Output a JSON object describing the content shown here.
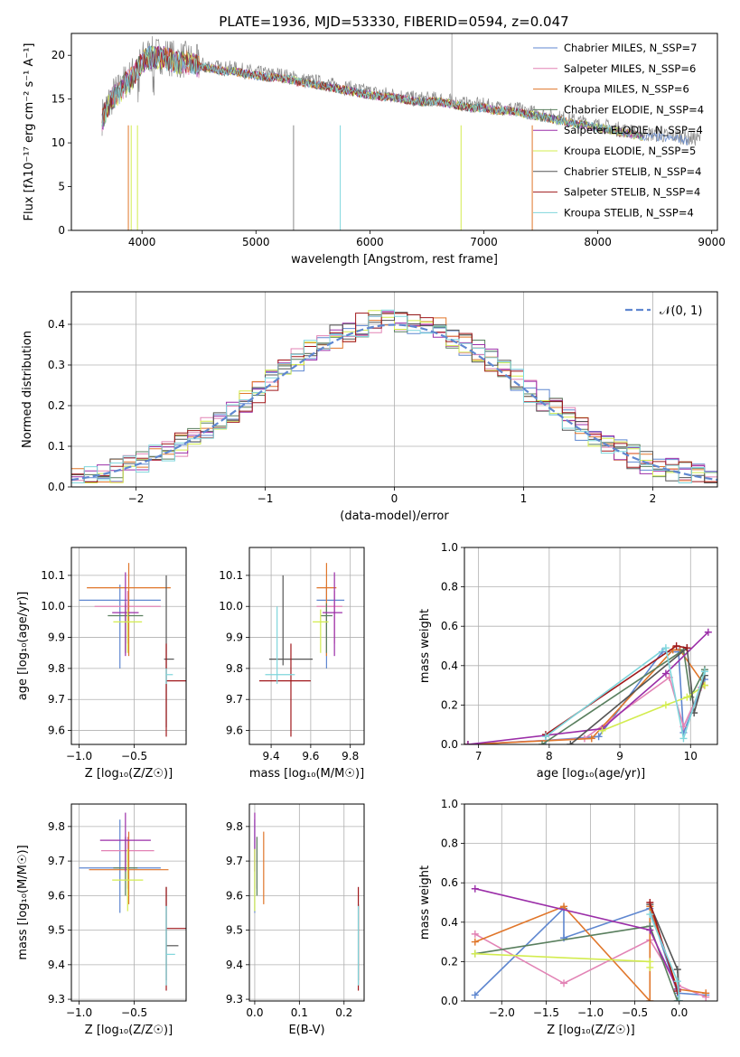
{
  "figure": {
    "title": "PLATE=1936, MJD=53330, FIBERID=0594, z=0.047"
  },
  "chart_data": [
    {
      "id": "spectrum",
      "type": "line",
      "xlabel": "wavelength [Angstrom, rest frame]",
      "ylabel": "Flux [fλ10⁻¹⁷ erg cm⁻² s⁻¹ A⁻¹]",
      "xlim": [
        3380,
        9050
      ],
      "ylim": [
        0,
        22.5
      ],
      "xticks": [
        4000,
        5000,
        6000,
        7000,
        8000,
        9000
      ],
      "yticks": [
        0,
        5,
        10,
        15,
        20
      ],
      "legend_position": "top-right",
      "grid": false,
      "data_curve": {
        "color": "#888888",
        "x": [
          3650,
          3700,
          3750,
          3800,
          3850,
          3900,
          3950,
          4000,
          4050,
          4100,
          4200,
          4300,
          4400,
          4500,
          4600,
          4700,
          4800,
          4900,
          5000,
          5100,
          5200,
          5300,
          5400,
          5500,
          5600,
          5700,
          5800,
          5900,
          6000,
          6100,
          6200,
          6300,
          6400,
          6500,
          6600,
          6700,
          6800,
          6900,
          7000,
          7100,
          7200,
          7300,
          7400,
          7500,
          7600,
          7700,
          7800,
          7900,
          8000,
          8100,
          8200,
          8300,
          8400,
          8500,
          8600,
          8700,
          8800,
          8900
        ],
        "y": [
          13,
          14.5,
          15.5,
          16,
          17,
          17.5,
          18.5,
          19.5,
          20,
          20,
          20,
          19.5,
          19.5,
          19,
          18.8,
          18.5,
          18.5,
          18.2,
          18,
          17.8,
          17.8,
          17.5,
          17.2,
          17,
          16.8,
          16.5,
          16.3,
          16,
          15.8,
          15.6,
          15.5,
          15.3,
          15,
          15,
          15,
          14.8,
          14.5,
          14.3,
          14.3,
          14,
          14,
          13.8,
          13.5,
          13.3,
          13,
          12.8,
          12.5,
          12.3,
          12,
          11.8,
          11.5,
          11.3,
          11,
          11,
          10.8,
          10.8,
          10.5,
          10.5
        ]
      },
      "series": [
        {
          "name": "Chabrier MILES, N_SSP=7",
          "color": "#5f87d0"
        },
        {
          "name": "Salpeter MILES, N_SSP=6",
          "color": "#e283b5"
        },
        {
          "name": "Kroupa MILES, N_SSP=6",
          "color": "#e0762a"
        },
        {
          "name": "Chabrier ELODIE, N_SSP=4",
          "color": "#597f5e"
        },
        {
          "name": "Salpeter ELODIE, N_SSP=4",
          "color": "#9b2ea8"
        },
        {
          "name": "Kroupa ELODIE, N_SSP=5",
          "color": "#d3ec4f"
        },
        {
          "name": "Chabrier STELIB, N_SSP=4",
          "color": "#555555"
        },
        {
          "name": "Salpeter STELIB, N_SSP=4",
          "color": "#a0181b"
        },
        {
          "name": "Kroupa STELIB, N_SSP=4",
          "color": "#7fd6dc"
        }
      ]
    },
    {
      "id": "residuals",
      "type": "histogram",
      "xlabel": "(data-model)/error",
      "ylabel": "Normed distribution",
      "xlim": [
        -2.5,
        2.5
      ],
      "ylim": [
        0,
        0.48
      ],
      "xticks": [
        -2,
        -1,
        0,
        1,
        2
      ],
      "yticks": [
        0.0,
        0.1,
        0.2,
        0.3,
        0.4
      ],
      "grid": true,
      "legend_position": "top-right",
      "legend": "𝒩(0, 1)",
      "normal_curve_color": "#5f87d0",
      "bin_width": 0.1,
      "bin_start": -2.5
    },
    {
      "id": "age_vs_Z",
      "type": "errorbar",
      "xlabel": "Z [log₁₀(Z/Z☉)]",
      "ylabel": "age  [log₁₀(age/yr)]",
      "xlim": [
        -1.07,
        -0.03
      ],
      "ylim": [
        9.555,
        10.19
      ],
      "xticks": [
        -1.0,
        -0.5
      ],
      "yticks": [
        9.6,
        9.7,
        9.8,
        9.9,
        10.0,
        10.1
      ],
      "grid": true,
      "points": [
        {
          "x": -0.63,
          "y": 10.02,
          "xerr": [
            0.37,
            0.37
          ],
          "yerr": [
            0.22,
            0.05
          ],
          "color": "#5f87d0"
        },
        {
          "x": -0.56,
          "y": 10.0,
          "xerr": [
            0.3,
            0.3
          ],
          "yerr": [
            0.12,
            0.05
          ],
          "color": "#e283b5"
        },
        {
          "x": -0.55,
          "y": 10.06,
          "xerr": [
            0.38,
            0.38
          ],
          "yerr": [
            0.22,
            0.08
          ],
          "color": "#e0762a"
        },
        {
          "x": -0.58,
          "y": 9.97,
          "xerr": [
            0.16,
            0.16
          ],
          "yerr": [
            0.12,
            0.04
          ],
          "color": "#597f5e"
        },
        {
          "x": -0.58,
          "y": 9.98,
          "xerr": [
            0.12,
            0.12
          ],
          "yerr": [
            0.14,
            0.13
          ],
          "color": "#9b2ea8"
        },
        {
          "x": -0.56,
          "y": 9.95,
          "xerr": [
            0.13,
            0.13
          ],
          "yerr": [
            0.1,
            0.04
          ],
          "color": "#d3ec4f"
        },
        {
          "x": -0.21,
          "y": 9.83,
          "xerr": [
            0.02,
            0.07
          ],
          "yerr": [
            0.22,
            0.27
          ],
          "color": "#555555"
        },
        {
          "x": -0.21,
          "y": 9.76,
          "xerr": [
            0.0,
            0.18
          ],
          "yerr": [
            0.18,
            0.12
          ],
          "color": "#a0181b"
        },
        {
          "x": -0.21,
          "y": 9.78,
          "xerr": [
            0.0,
            0.06
          ],
          "yerr": [
            0.03,
            0.02
          ],
          "color": "#7fd6dc"
        }
      ]
    },
    {
      "id": "age_vs_mass",
      "type": "errorbar",
      "xlabel": "mass [log₁₀(M/M☉)]",
      "ylabel": "",
      "xlim": [
        9.29,
        9.87
      ],
      "ylim": [
        9.555,
        10.19
      ],
      "xticks": [
        9.4,
        9.6,
        9.8
      ],
      "yticks": [
        9.6,
        9.7,
        9.8,
        9.9,
        10.0,
        10.1
      ],
      "grid": true,
      "points": [
        {
          "x": 9.68,
          "y": 10.02,
          "xerr": [
            0.05,
            0.09
          ],
          "yerr": [
            0.22,
            0.05
          ],
          "color": "#5f87d0"
        },
        {
          "x": 9.72,
          "y": 10.0,
          "xerr": [
            0.09,
            0.04
          ],
          "yerr": [
            0.12,
            0.05
          ],
          "color": "#e283b5"
        },
        {
          "x": 9.68,
          "y": 10.06,
          "xerr": [
            0.05,
            0.05
          ],
          "yerr": [
            0.22,
            0.08
          ],
          "color": "#e0762a"
        },
        {
          "x": 9.68,
          "y": 9.97,
          "xerr": [
            0.03,
            0.03
          ],
          "yerr": [
            0.12,
            0.04
          ],
          "color": "#597f5e"
        },
        {
          "x": 9.72,
          "y": 9.98,
          "xerr": [
            0.06,
            0.04
          ],
          "yerr": [
            0.14,
            0.13
          ],
          "color": "#9b2ea8"
        },
        {
          "x": 9.65,
          "y": 9.95,
          "xerr": [
            0.04,
            0.04
          ],
          "yerr": [
            0.1,
            0.04
          ],
          "color": "#d3ec4f"
        },
        {
          "x": 9.46,
          "y": 9.83,
          "xerr": [
            0.07,
            0.15
          ],
          "yerr": [
            0.02,
            0.27
          ],
          "color": "#555555"
        },
        {
          "x": 9.5,
          "y": 9.76,
          "xerr": [
            0.16,
            0.1
          ],
          "yerr": [
            0.18,
            0.12
          ],
          "color": "#a0181b"
        },
        {
          "x": 9.43,
          "y": 9.78,
          "xerr": [
            0.06,
            0.09
          ],
          "yerr": [
            0.03,
            0.22
          ],
          "color": "#7fd6dc"
        }
      ]
    },
    {
      "id": "massweight_vs_age",
      "type": "line",
      "xlabel": "age  [log₁₀(age/yr)]",
      "ylabel": "mass weight",
      "xlim": [
        6.8,
        10.38
      ],
      "ylim": [
        0,
        1.0
      ],
      "xticks": [
        7,
        8,
        9,
        10
      ],
      "yticks": [
        0.0,
        0.2,
        0.4,
        0.6,
        0.8,
        1.0
      ],
      "grid": true,
      "series": [
        {
          "color": "#5f87d0",
          "x": [
            6.85,
            7.95,
            8.7,
            9.6,
            9.83,
            9.9,
            10.2
          ],
          "y": [
            0.0,
            0.02,
            0.04,
            0.47,
            0.47,
            0.06,
            0.33
          ]
        },
        {
          "color": "#e283b5",
          "x": [
            6.85,
            8.5,
            9.7,
            9.9,
            10.15
          ],
          "y": [
            0.0,
            0.03,
            0.34,
            0.09,
            0.29
          ]
        },
        {
          "color": "#e0762a",
          "x": [
            6.85,
            8.6,
            9.75,
            9.85,
            10.2
          ],
          "y": [
            0.0,
            0.03,
            0.48,
            0.48,
            0.3
          ]
        },
        {
          "color": "#597f5e",
          "x": [
            7.9,
            9.9,
            10.0,
            10.2
          ],
          "y": [
            0.0,
            0.48,
            0.24,
            0.38
          ]
        },
        {
          "color": "#9b2ea8",
          "x": [
            6.85,
            8.75,
            9.65,
            10.25
          ],
          "y": [
            0.0,
            0.08,
            0.36,
            0.57
          ]
        },
        {
          "color": "#d3ec4f",
          "x": [
            8.75,
            9.65,
            9.95,
            10.2
          ],
          "y": [
            0.07,
            0.2,
            0.24,
            0.3
          ]
        },
        {
          "color": "#555555",
          "x": [
            8.3,
            9.95,
            10.05,
            10.2
          ],
          "y": [
            0.0,
            0.49,
            0.16,
            0.35
          ]
        },
        {
          "color": "#a0181b",
          "x": [
            7.95,
            9.8,
            9.95
          ],
          "y": [
            0.05,
            0.5,
            0.49
          ]
        },
        {
          "color": "#7fd6dc",
          "x": [
            7.95,
            9.65,
            9.9,
            10.2
          ],
          "y": [
            0.04,
            0.49,
            0.03,
            0.37
          ]
        }
      ]
    },
    {
      "id": "mass_vs_Z",
      "type": "errorbar",
      "xlabel": "Z [log₁₀(Z/Z☉)]",
      "ylabel": "mass [log₁₀(M/M☉)]",
      "xlim": [
        -1.07,
        -0.03
      ],
      "ylim": [
        9.295,
        9.865
      ],
      "xticks": [
        -1.0,
        -0.5
      ],
      "yticks": [
        9.3,
        9.4,
        9.5,
        9.6,
        9.7,
        9.8
      ],
      "grid": true,
      "points": [
        {
          "x": -0.63,
          "y": 9.68,
          "xerr": [
            0.37,
            0.37
          ],
          "yerr": [
            0.13,
            0.14
          ],
          "color": "#5f87d0"
        },
        {
          "x": -0.56,
          "y": 9.73,
          "xerr": [
            0.24,
            0.24
          ],
          "yerr": [
            0.11,
            0.04
          ],
          "color": "#e283b5"
        },
        {
          "x": -0.55,
          "y": 9.675,
          "xerr": [
            0.36,
            0.36
          ],
          "yerr": [
            0.1,
            0.11
          ],
          "color": "#e0762a"
        },
        {
          "x": -0.58,
          "y": 9.68,
          "xerr": [
            0.11,
            0.11
          ],
          "yerr": [
            0.08,
            0.09
          ],
          "color": "#597f5e"
        },
        {
          "x": -0.58,
          "y": 9.76,
          "xerr": [
            0.23,
            0.23
          ],
          "yerr": [
            0.09,
            0.08
          ],
          "color": "#9b2ea8"
        },
        {
          "x": -0.56,
          "y": 9.645,
          "xerr": [
            0.14,
            0.14
          ],
          "yerr": [
            0.09,
            0.09
          ],
          "color": "#d3ec4f"
        },
        {
          "x": -0.21,
          "y": 9.455,
          "xerr": [
            0.0,
            0.11
          ],
          "yerr": [
            0.1,
            0.17
          ],
          "color": "#555555"
        },
        {
          "x": -0.21,
          "y": 9.505,
          "xerr": [
            0.0,
            0.19
          ],
          "yerr": [
            0.18,
            0.12
          ],
          "color": "#a0181b"
        },
        {
          "x": -0.21,
          "y": 9.43,
          "xerr": [
            0.0,
            0.08
          ],
          "yerr": [
            0.09,
            0.14
          ],
          "color": "#7fd6dc"
        }
      ]
    },
    {
      "id": "mass_vs_ebv",
      "type": "errorbar",
      "xlabel": "E(B-V)",
      "ylabel": "",
      "xlim": [
        -0.012,
        0.245
      ],
      "ylim": [
        9.295,
        9.865
      ],
      "xticks": [
        0.0,
        0.1,
        0.2
      ],
      "yticks": [
        9.3,
        9.4,
        9.5,
        9.6,
        9.7,
        9.8
      ],
      "grid": true,
      "points": [
        {
          "x": 0.0,
          "y": 9.68,
          "xerr": [
            0,
            0
          ],
          "yerr": [
            0.13,
            0.14
          ],
          "color": "#5f87d0"
        },
        {
          "x": 0.005,
          "y": 9.73,
          "xerr": [
            0,
            0
          ],
          "yerr": [
            0.11,
            0.04
          ],
          "color": "#e283b5"
        },
        {
          "x": 0.02,
          "y": 9.675,
          "xerr": [
            0,
            0
          ],
          "yerr": [
            0.1,
            0.11
          ],
          "color": "#e0762a"
        },
        {
          "x": 0.005,
          "y": 9.68,
          "xerr": [
            0,
            0
          ],
          "yerr": [
            0.08,
            0.09
          ],
          "color": "#597f5e"
        },
        {
          "x": 0.0,
          "y": 9.76,
          "xerr": [
            0,
            0
          ],
          "yerr": [
            0.09,
            0.08
          ],
          "color": "#9b2ea8"
        },
        {
          "x": 0.0,
          "y": 9.645,
          "xerr": [
            0,
            0
          ],
          "yerr": [
            0.09,
            0.09
          ],
          "color": "#d3ec4f"
        },
        {
          "x": 0.232,
          "y": 9.455,
          "xerr": [
            0,
            0
          ],
          "yerr": [
            0.1,
            0.12
          ],
          "color": "#555555"
        },
        {
          "x": 0.232,
          "y": 9.505,
          "xerr": [
            0,
            0
          ],
          "yerr": [
            0.18,
            0.12
          ],
          "color": "#a0181b"
        },
        {
          "x": 0.232,
          "y": 9.43,
          "xerr": [
            0,
            0
          ],
          "yerr": [
            0.09,
            0.14
          ],
          "color": "#7fd6dc"
        }
      ]
    },
    {
      "id": "massweight_vs_Z",
      "type": "line",
      "xlabel": "Z [log₁₀(Z/Z☉)]",
      "ylabel": "mass weight",
      "xlim": [
        -2.42,
        0.43
      ],
      "ylim": [
        0,
        1.0
      ],
      "xticks": [
        -2.0,
        -1.5,
        -1.0,
        -0.5,
        0.0
      ],
      "yticks": [
        0.0,
        0.2,
        0.4,
        0.6,
        0.8,
        1.0
      ],
      "grid": true,
      "series": [
        {
          "color": "#5f87d0",
          "x": [
            -2.3,
            -1.3,
            -1.3,
            -0.33,
            -0.02,
            0.3
          ],
          "y": [
            0.03,
            0.47,
            0.32,
            0.47,
            0.04,
            0.03
          ]
        },
        {
          "color": "#e283b5",
          "x": [
            -2.3,
            -1.3,
            -0.33,
            -0.02,
            0.3
          ],
          "y": [
            0.34,
            0.09,
            0.31,
            0.08,
            0.02
          ]
        },
        {
          "color": "#e0762a",
          "x": [
            -2.3,
            -1.3,
            -0.33,
            -0.33,
            -0.02,
            0.3
          ],
          "y": [
            0.3,
            0.48,
            0.0,
            0.48,
            0.06,
            0.04
          ]
        },
        {
          "color": "#597f5e",
          "x": [
            -2.3,
            -0.33,
            -0.02
          ],
          "y": [
            0.24,
            0.38,
            0.0
          ]
        },
        {
          "color": "#9b2ea8",
          "x": [
            -2.3,
            -0.33,
            -0.02
          ],
          "y": [
            0.57,
            0.36,
            0.06
          ]
        },
        {
          "color": "#d3ec4f",
          "x": [
            -2.3,
            -0.33,
            -0.33
          ],
          "y": [
            0.24,
            0.2,
            0.17
          ]
        },
        {
          "color": "#555555",
          "x": [
            -0.33,
            -0.02,
            0.0
          ],
          "y": [
            0.49,
            0.16,
            0.0
          ]
        },
        {
          "color": "#a0181b",
          "x": [
            -0.33,
            -0.02
          ],
          "y": [
            0.5,
            0.05
          ]
        },
        {
          "color": "#7fd6dc",
          "x": [
            -0.33,
            -0.02,
            0.0
          ],
          "y": [
            0.44,
            0.1,
            0.0
          ]
        }
      ]
    }
  ]
}
